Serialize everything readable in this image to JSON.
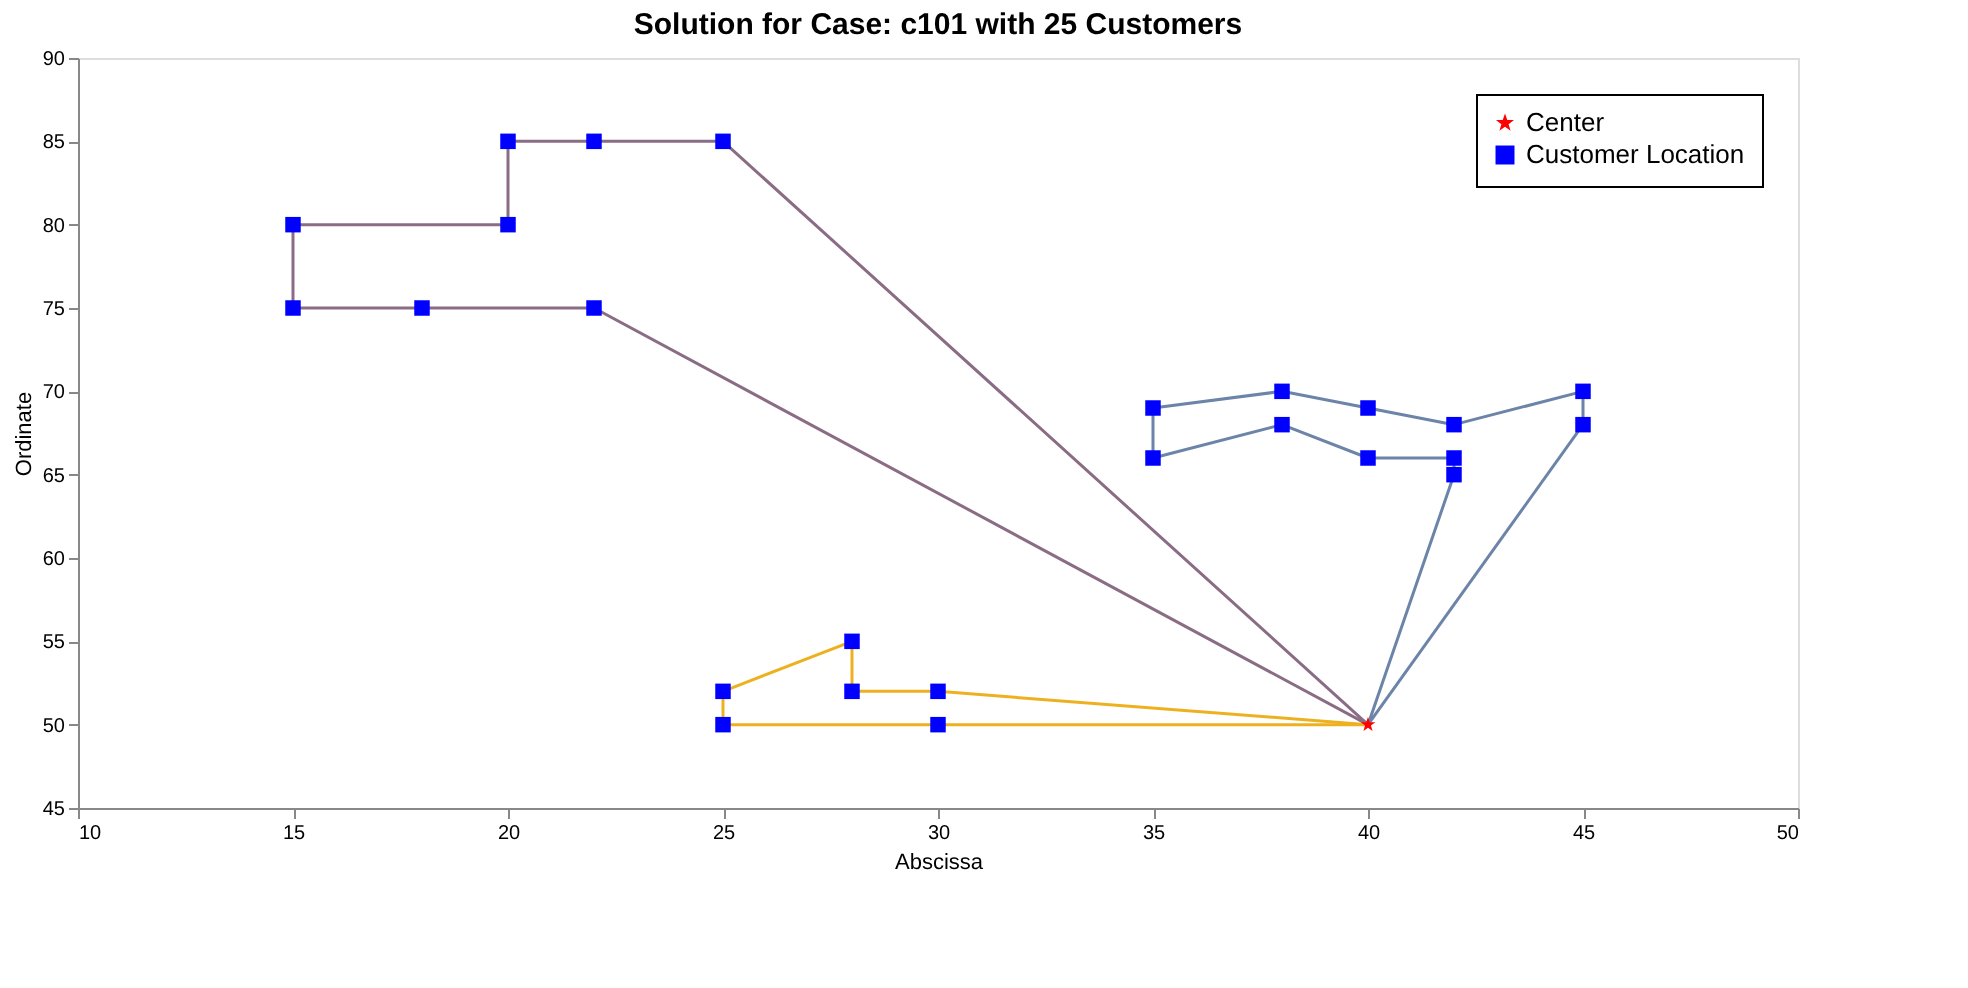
{
  "chart_data": {
    "type": "line",
    "title": "Solution for Case: c101 with 25 Customers",
    "xlabel": "Abscissa",
    "ylabel": "Ordinate",
    "xlim": [
      10,
      50
    ],
    "xticks": [
      10,
      15,
      20,
      25,
      30,
      35,
      40,
      45,
      50
    ],
    "ylim": [
      45,
      90
    ],
    "yticks": [
      45,
      50,
      55,
      60,
      65,
      70,
      75,
      80,
      85,
      90
    ],
    "grid": false,
    "legend": "top right",
    "marker": "none",
    "line_style": "solid",
    "series": [
      {
        "color": "#8a6c85",
        "x": [
          40,
          25,
          22,
          20,
          20,
          15,
          15
        ],
        "values": [
          50,
          85,
          85,
          85,
          80,
          80,
          75
        ]
      },
      {
        "color": "#8a6c85",
        "x": [
          15,
          18,
          22,
          40
        ],
        "values": [
          75,
          75,
          75,
          50
        ]
      },
      {
        "color": "#6b84a8",
        "x": [
          40,
          42,
          42
        ],
        "values": [
          50,
          65,
          66
        ]
      },
      {
        "color": "#6b84a8",
        "x": [
          42,
          40,
          38,
          35,
          35
        ],
        "values": [
          66,
          66,
          68,
          66,
          69
        ]
      },
      {
        "color": "#6b84a8",
        "x": [
          35,
          38,
          40,
          42,
          45,
          45
        ],
        "values": [
          69,
          70,
          69,
          68,
          70,
          68
        ]
      },
      {
        "color": "#6b84a8",
        "x": [
          45,
          40
        ],
        "values": [
          68,
          50
        ]
      },
      {
        "color": "#edb120",
        "x": [
          40,
          30,
          28,
          28,
          25,
          25
        ],
        "values": [
          50,
          52,
          52,
          55,
          52,
          50
        ]
      },
      {
        "color": "#edb120",
        "x": [
          25,
          30,
          40
        ],
        "values": [
          50,
          50,
          50
        ]
      },
      {
        "type": "scatter",
        "name": "Center",
        "color": "#ff0000",
        "marker": "star",
        "x": [
          40
        ],
        "values": [
          50
        ]
      },
      {
        "type": "scatter",
        "name": "Customer Location",
        "color": "#0000ff",
        "marker": "square",
        "x": [
          25,
          22,
          20,
          20,
          15,
          15,
          18,
          22,
          42,
          42,
          40,
          38,
          35,
          35,
          38,
          40,
          42,
          45,
          45,
          30,
          28,
          28,
          25,
          25,
          30
        ],
        "values": [
          85,
          85,
          85,
          80,
          80,
          75,
          75,
          75,
          65,
          66,
          66,
          68,
          66,
          69,
          70,
          69,
          68,
          70,
          68,
          52,
          52,
          55,
          52,
          50,
          50
        ]
      }
    ]
  }
}
